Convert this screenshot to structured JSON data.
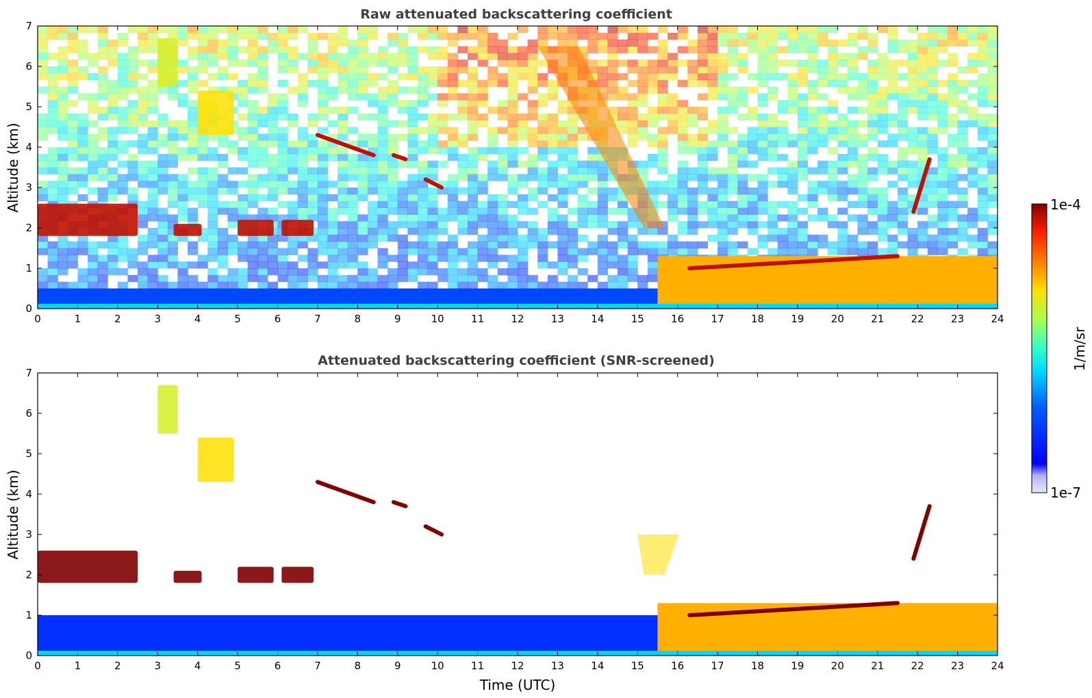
{
  "chart_data": [
    {
      "type": "heatmap",
      "title": "Raw attenuated backscattering coefficient",
      "xlabel": "",
      "ylabel": "Altitude (km)",
      "xlim": [
        0,
        24
      ],
      "ylim": [
        0,
        7
      ],
      "x_ticks": [
        "0",
        "1",
        "2",
        "3",
        "4",
        "5",
        "6",
        "7",
        "8",
        "9",
        "10",
        "11",
        "12",
        "13",
        "14",
        "15",
        "16",
        "17",
        "18",
        "19",
        "20",
        "21",
        "22",
        "23",
        "24"
      ],
      "y_ticks": [
        "0",
        "1",
        "2",
        "3",
        "4",
        "5",
        "6",
        "7"
      ],
      "background": "noisy",
      "features": [
        {
          "kind": "boundary_layer",
          "x": [
            0,
            15.5
          ],
          "y_top": 0.5,
          "level": 0.25
        },
        {
          "kind": "low_cloud",
          "x": [
            0,
            2.5
          ],
          "y": [
            1.8,
            2.6
          ],
          "level": 0.95
        },
        {
          "kind": "low_cloud",
          "x": [
            3.4,
            4.1
          ],
          "y": [
            1.8,
            2.1
          ],
          "level": 0.95
        },
        {
          "kind": "low_cloud",
          "x": [
            5.0,
            5.9
          ],
          "y": [
            1.8,
            2.2
          ],
          "level": 0.95
        },
        {
          "kind": "low_cloud",
          "x": [
            6.1,
            6.9
          ],
          "y": [
            1.8,
            2.2
          ],
          "level": 0.95
        },
        {
          "kind": "virga",
          "x": [
            3.0,
            3.5
          ],
          "y": [
            5.5,
            6.7
          ],
          "level": 0.65
        },
        {
          "kind": "virga",
          "x": [
            4.0,
            4.9
          ],
          "y": [
            4.3,
            5.4
          ],
          "level": 0.7
        },
        {
          "kind": "cloud_line",
          "x": [
            7.0,
            8.4
          ],
          "y": [
            4.3,
            3.8
          ],
          "level": 0.95
        },
        {
          "kind": "cloud_line",
          "x": [
            8.9,
            9.2
          ],
          "y": [
            3.8,
            3.7
          ],
          "level": 0.95
        },
        {
          "kind": "cloud_line",
          "x": [
            9.7,
            10.1
          ],
          "y": [
            3.2,
            3.0
          ],
          "level": 0.95
        },
        {
          "kind": "aerosol_plume",
          "x": [
            12.5,
            15.5
          ],
          "y": [
            6.5,
            2.0
          ],
          "level": 0.8
        },
        {
          "kind": "boundary_layer",
          "x": [
            15.5,
            24
          ],
          "y_top": 1.3,
          "level": 0.75
        },
        {
          "kind": "cloud_line",
          "x": [
            16.3,
            21.5
          ],
          "y": [
            1.0,
            1.3
          ],
          "level": 0.95
        },
        {
          "kind": "cloud_line",
          "x": [
            21.9,
            22.3
          ],
          "y": [
            2.4,
            3.7
          ],
          "level": 0.95
        }
      ]
    },
    {
      "type": "heatmap",
      "title": "Attenuated backscattering coefficient (SNR-screened)",
      "xlabel": "Time (UTC)",
      "ylabel": "Altitude (km)",
      "xlim": [
        0,
        24
      ],
      "ylim": [
        0,
        7
      ],
      "x_ticks": [
        "0",
        "1",
        "2",
        "3",
        "4",
        "5",
        "6",
        "7",
        "8",
        "9",
        "10",
        "11",
        "12",
        "13",
        "14",
        "15",
        "16",
        "17",
        "18",
        "19",
        "20",
        "21",
        "22",
        "23",
        "24"
      ],
      "y_ticks": [
        "0",
        "1",
        "2",
        "3",
        "4",
        "5",
        "6",
        "7"
      ],
      "background": "screened",
      "features": [
        {
          "kind": "boundary_layer",
          "x": [
            0,
            15.5
          ],
          "y_top": 1.0,
          "level": 0.2
        },
        {
          "kind": "low_cloud",
          "x": [
            0,
            2.5
          ],
          "y": [
            1.8,
            2.6
          ],
          "level": 1.0
        },
        {
          "kind": "low_cloud",
          "x": [
            3.4,
            4.1
          ],
          "y": [
            1.8,
            2.1
          ],
          "level": 1.0
        },
        {
          "kind": "low_cloud",
          "x": [
            5.0,
            5.9
          ],
          "y": [
            1.8,
            2.2
          ],
          "level": 1.0
        },
        {
          "kind": "low_cloud",
          "x": [
            6.1,
            6.9
          ],
          "y": [
            1.8,
            2.2
          ],
          "level": 1.0
        },
        {
          "kind": "virga",
          "x": [
            3.0,
            3.5
          ],
          "y": [
            5.5,
            6.7
          ],
          "level": 0.65
        },
        {
          "kind": "virga",
          "x": [
            4.0,
            4.9
          ],
          "y": [
            4.3,
            5.4
          ],
          "level": 0.7
        },
        {
          "kind": "cloud_line",
          "x": [
            7.0,
            8.4
          ],
          "y": [
            4.3,
            3.8
          ],
          "level": 1.0
        },
        {
          "kind": "cloud_line",
          "x": [
            8.9,
            9.2
          ],
          "y": [
            3.8,
            3.7
          ],
          "level": 1.0
        },
        {
          "kind": "cloud_line",
          "x": [
            9.7,
            10.1
          ],
          "y": [
            3.2,
            3.0
          ],
          "level": 1.0
        },
        {
          "kind": "aerosol_plume",
          "x": [
            15.0,
            15.5
          ],
          "y": [
            3.0,
            2.0
          ],
          "level": 0.7
        },
        {
          "kind": "boundary_layer",
          "x": [
            15.5,
            24
          ],
          "y_top": 1.3,
          "level": 0.75
        },
        {
          "kind": "cloud_line",
          "x": [
            16.3,
            21.5
          ],
          "y": [
            1.0,
            1.3
          ],
          "level": 1.0
        },
        {
          "kind": "cloud_line",
          "x": [
            21.9,
            22.3
          ],
          "y": [
            2.4,
            3.7
          ],
          "level": 1.0
        }
      ]
    }
  ],
  "colorbar": {
    "max_label": "1e-4",
    "min_label": "1e-7",
    "unit_label": "1/m/sr",
    "colormap": "jet",
    "scale": "log",
    "range": [
      1e-07,
      0.0001
    ]
  }
}
